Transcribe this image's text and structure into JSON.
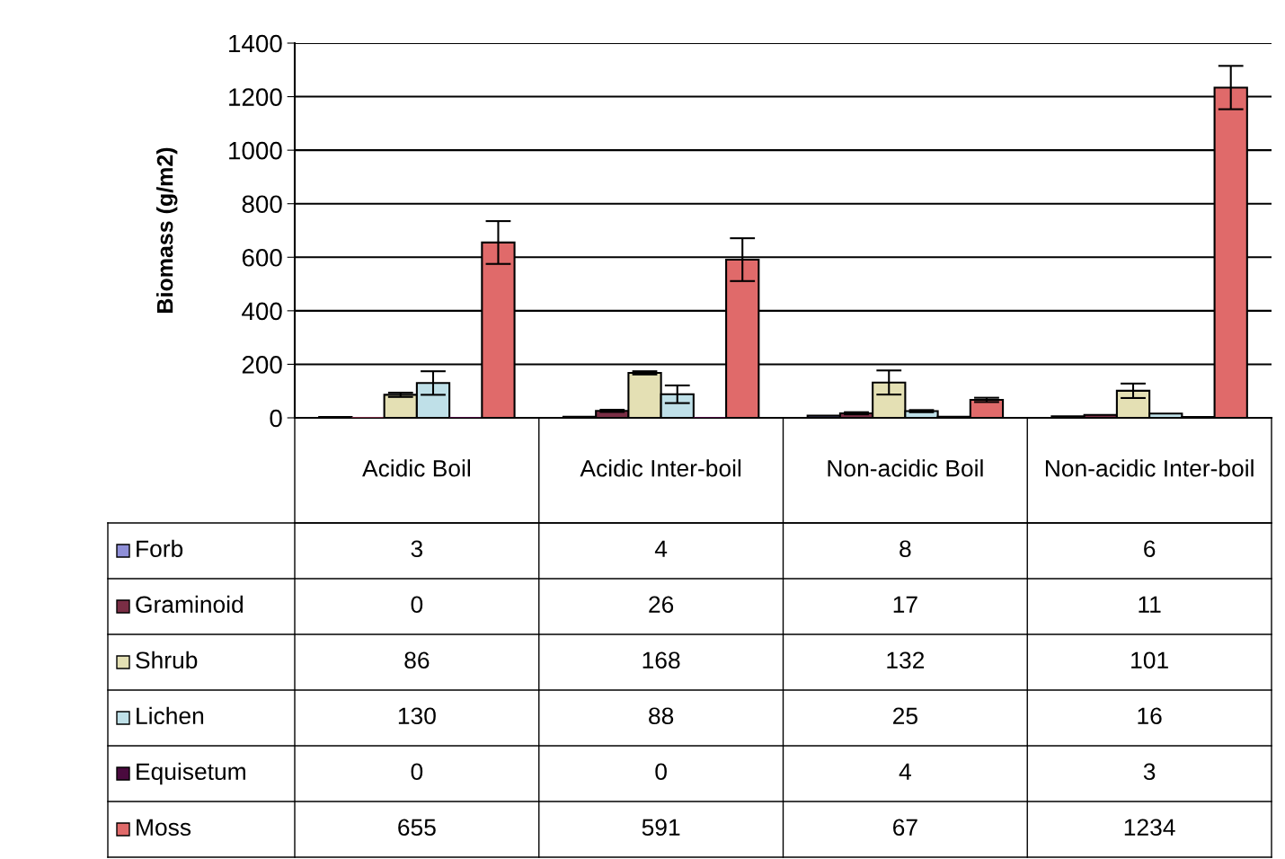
{
  "chart_data": {
    "type": "bar",
    "ylabel": "Biomass (g/m2)",
    "categories": [
      "Acidic Boil",
      "Acidic Inter-boil",
      "Non-acidic Boil",
      "Non-acidic Inter-boil"
    ],
    "series": [
      {
        "name": "Forb",
        "color": "#8f8fd8",
        "values": [
          3,
          4,
          8,
          6
        ],
        "errors": [
          null,
          null,
          null,
          null
        ]
      },
      {
        "name": "Graminoid",
        "color": "#7a2e45",
        "values": [
          0,
          26,
          17,
          11
        ],
        "errors": [
          null,
          4,
          4,
          null
        ]
      },
      {
        "name": "Shrub",
        "color": "#e4e0b4",
        "values": [
          86,
          168,
          132,
          101
        ],
        "errors": [
          8,
          6,
          45,
          27
        ]
      },
      {
        "name": "Lichen",
        "color": "#bfe0e8",
        "values": [
          130,
          88,
          25,
          16
        ],
        "errors": [
          44,
          33,
          4,
          null
        ]
      },
      {
        "name": "Equisetum",
        "color": "#4a0a3e",
        "values": [
          0,
          0,
          4,
          3
        ],
        "errors": [
          null,
          null,
          null,
          null
        ]
      },
      {
        "name": "Moss",
        "color": "#e06a6a",
        "values": [
          655,
          591,
          67,
          1234
        ],
        "errors": [
          80,
          80,
          8,
          81
        ]
      }
    ],
    "ylim": [
      0,
      1400
    ],
    "yticks": [
      0,
      200,
      400,
      600,
      800,
      1000,
      1200,
      1400
    ],
    "grid": "y",
    "legend": "bottom",
    "data_labels": true
  }
}
